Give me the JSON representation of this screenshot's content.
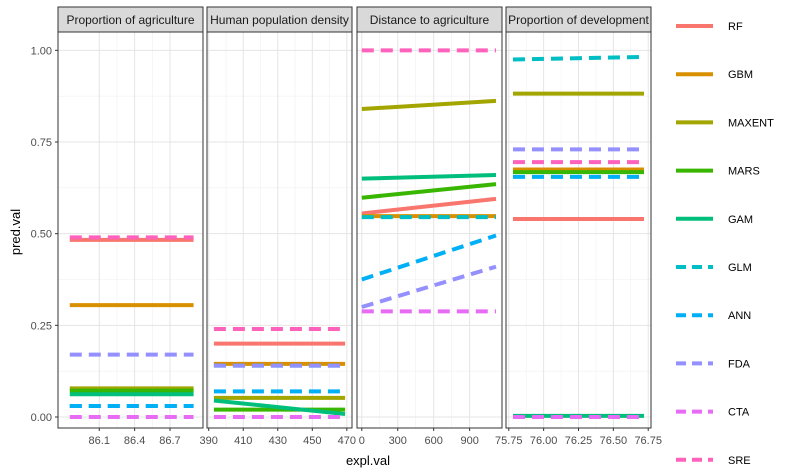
{
  "chart_data": {
    "type": "line",
    "xlabel": "expl.val",
    "ylabel": "pred.val",
    "ylim": [
      -0.03,
      1.05
    ],
    "y_ticks": [
      "0.00",
      "0.25",
      "0.50",
      "0.75",
      "1.00"
    ],
    "y_tick_values": [
      0,
      0.25,
      0.5,
      0.75,
      1.0
    ],
    "grid": true,
    "legend_position": "right",
    "legend": [
      {
        "name": "RF",
        "color": "#F8766D",
        "dash": "solid"
      },
      {
        "name": "GBM",
        "color": "#D89000",
        "dash": "solid"
      },
      {
        "name": "MAXENT",
        "color": "#A3A500",
        "dash": "solid"
      },
      {
        "name": "MARS",
        "color": "#39B600",
        "dash": "solid"
      },
      {
        "name": "GAM",
        "color": "#00BF7D",
        "dash": "solid"
      },
      {
        "name": "GLM",
        "color": "#00BFC4",
        "dash": "dashed"
      },
      {
        "name": "ANN",
        "color": "#00B0F6",
        "dash": "dashed"
      },
      {
        "name": "FDA",
        "color": "#9590FF",
        "dash": "dashed"
      },
      {
        "name": "CTA",
        "color": "#E76BF3",
        "dash": "dashed"
      },
      {
        "name": "SRE",
        "color": "#FF62BC",
        "dash": "dashed"
      }
    ],
    "panels": [
      {
        "title": "Proportion of agriculture",
        "xlim": [
          85.75,
          86.98
        ],
        "x_ticks": [
          "86.1",
          "86.4",
          "86.7"
        ],
        "x_tick_values": [
          86.1,
          86.4,
          86.7
        ],
        "x": [
          85.85,
          86.9
        ],
        "series": [
          {
            "name": "RF",
            "values": [
              0.483,
              0.483
            ]
          },
          {
            "name": "GBM",
            "values": [
              0.305,
              0.305
            ]
          },
          {
            "name": "MAXENT",
            "values": [
              0.078,
              0.078
            ]
          },
          {
            "name": "MARS",
            "values": [
              0.072,
              0.072
            ]
          },
          {
            "name": "GAM",
            "values": [
              0.062,
              0.062
            ]
          },
          {
            "name": "GLM",
            "values": [
              0.03,
              0.03
            ]
          },
          {
            "name": "ANN",
            "values": [
              0.03,
              0.03
            ]
          },
          {
            "name": "FDA",
            "values": [
              0.17,
              0.17
            ]
          },
          {
            "name": "CTA",
            "values": [
              0.0,
              0.0
            ]
          },
          {
            "name": "SRE",
            "values": [
              0.49,
              0.49
            ]
          }
        ]
      },
      {
        "title": "Human population density",
        "xlim": [
          389,
          473
        ],
        "x_ticks": [
          "390",
          "410",
          "430",
          "450",
          "470"
        ],
        "x_tick_values": [
          390,
          410,
          430,
          450,
          470
        ],
        "x": [
          393,
          469
        ],
        "series": [
          {
            "name": "RF",
            "values": [
              0.2,
              0.2
            ]
          },
          {
            "name": "GBM",
            "values": [
              0.145,
              0.145
            ]
          },
          {
            "name": "MAXENT",
            "values": [
              0.052,
              0.052
            ]
          },
          {
            "name": "MARS",
            "values": [
              0.02,
              0.02
            ]
          },
          {
            "name": "GAM",
            "values": [
              0.045,
              0.008
            ]
          },
          {
            "name": "GLM",
            "values": [
              0.14,
              0.14
            ]
          },
          {
            "name": "ANN",
            "values": [
              0.07,
              0.07
            ]
          },
          {
            "name": "FDA",
            "values": [
              0.14,
              0.14
            ]
          },
          {
            "name": "CTA",
            "values": [
              0.0,
              0.0
            ]
          },
          {
            "name": "SRE",
            "values": [
              0.24,
              0.24
            ]
          }
        ]
      },
      {
        "title": "Distance to agriculture",
        "xlim": [
          -40,
          1170
        ],
        "x_ticks": [
          "0",
          "300",
          "600",
          "900"
        ],
        "x_tick_values": [
          0,
          300,
          600,
          900
        ],
        "x": [
          0,
          1120
        ],
        "series": [
          {
            "name": "RF",
            "values": [
              0.555,
              0.595
            ]
          },
          {
            "name": "GBM",
            "values": [
              0.548,
              0.548
            ]
          },
          {
            "name": "MAXENT",
            "values": [
              0.84,
              0.862
            ]
          },
          {
            "name": "MARS",
            "values": [
              0.598,
              0.635
            ]
          },
          {
            "name": "GAM",
            "values": [
              0.65,
              0.66
            ]
          },
          {
            "name": "GLM",
            "values": [
              0.545,
              0.545
            ]
          },
          {
            "name": "ANN",
            "values": [
              0.375,
              0.495
            ]
          },
          {
            "name": "FDA",
            "values": [
              0.3,
              0.41
            ]
          },
          {
            "name": "CTA",
            "values": [
              0.288,
              0.288
            ]
          },
          {
            "name": "SRE",
            "values": [
              1.0,
              1.0
            ]
          }
        ]
      },
      {
        "title": "Proportion of development",
        "xlim": [
          75.73,
          76.77
        ],
        "x_ticks": [
          "75.75",
          "76.00",
          "76.25",
          "76.50",
          "76.75"
        ],
        "x_tick_values": [
          75.75,
          76.0,
          76.25,
          76.5,
          76.75
        ],
        "x": [
          75.78,
          76.72
        ],
        "series": [
          {
            "name": "RF",
            "values": [
              0.54,
              0.54
            ]
          },
          {
            "name": "GBM",
            "values": [
              0.675,
              0.675
            ]
          },
          {
            "name": "MAXENT",
            "values": [
              0.882,
              0.882
            ]
          },
          {
            "name": "MARS",
            "values": [
              0.668,
              0.668
            ]
          },
          {
            "name": "GAM",
            "values": [
              0.003,
              0.003
            ]
          },
          {
            "name": "GLM",
            "values": [
              0.975,
              0.982
            ]
          },
          {
            "name": "ANN",
            "values": [
              0.655,
              0.655
            ]
          },
          {
            "name": "FDA",
            "values": [
              0.73,
              0.73
            ]
          },
          {
            "name": "CTA",
            "values": [
              0.0,
              0.0
            ]
          },
          {
            "name": "SRE",
            "values": [
              0.695,
              0.695
            ]
          }
        ]
      }
    ]
  }
}
